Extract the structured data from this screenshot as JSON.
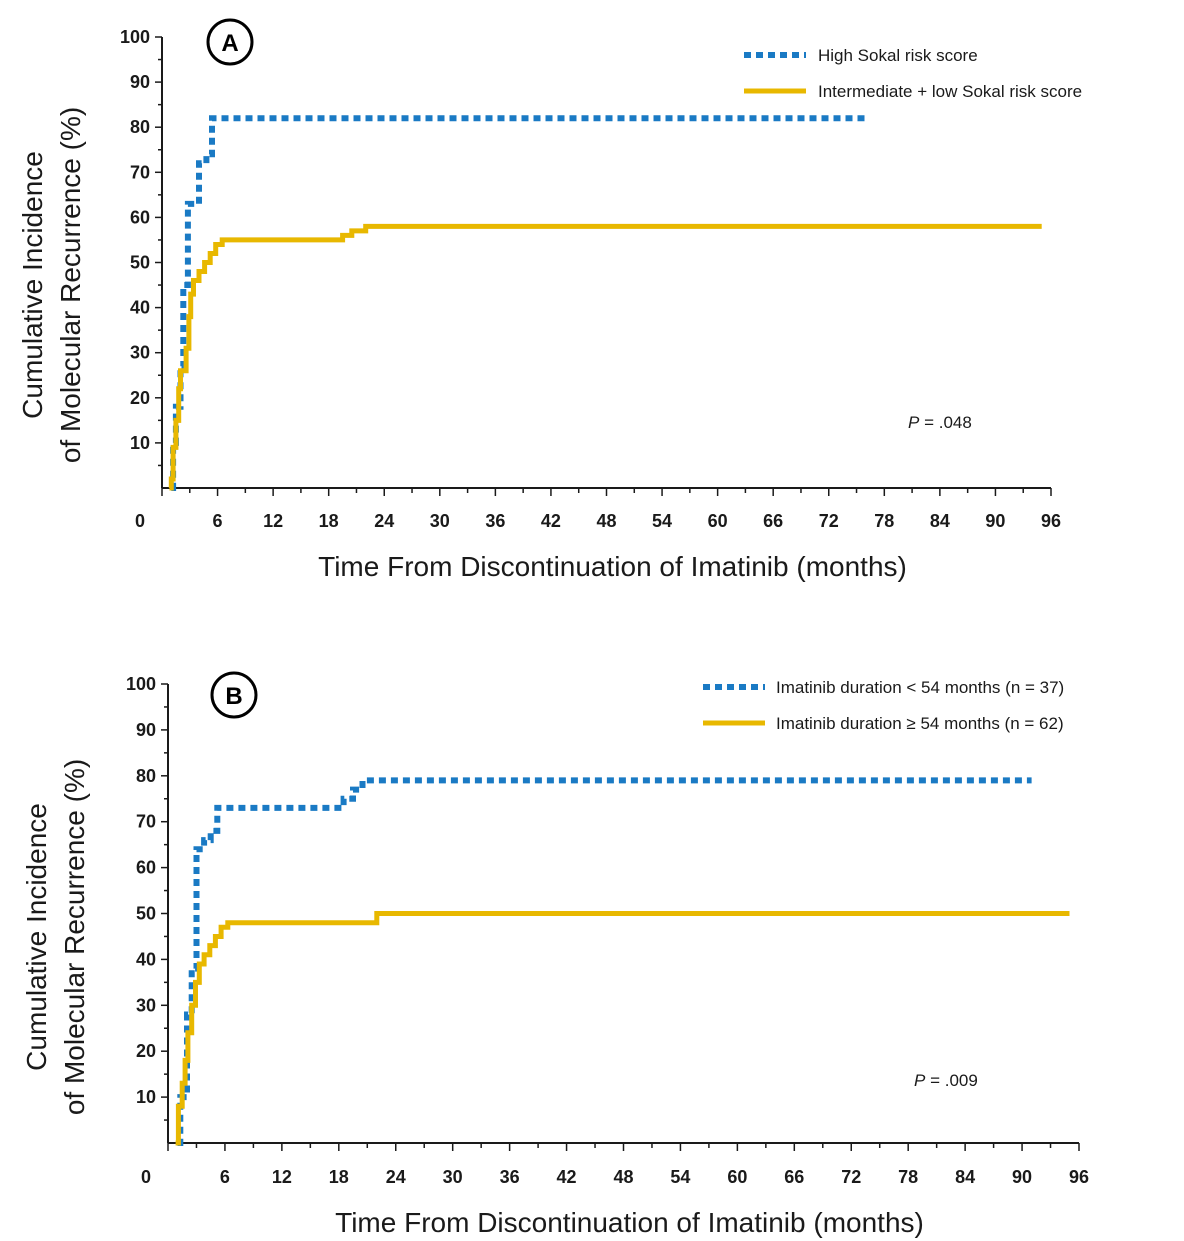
{
  "colors": {
    "series_dashed": "#1a7ac4",
    "series_solid": "#e8b800",
    "axis": "#1a1a1a"
  },
  "chart_data": [
    {
      "panel_label": "A",
      "type": "line",
      "xlabel": "Time From Discontinuation of Imatinib (months)",
      "ylabel_line1": "Cumulative Incidence",
      "ylabel_line2": "of Molecular Recurrence (%)",
      "xlim": [
        0,
        96
      ],
      "ylim": [
        0,
        100
      ],
      "xticks": [
        0,
        6,
        12,
        18,
        24,
        30,
        36,
        42,
        48,
        54,
        60,
        66,
        72,
        78,
        84,
        90,
        96
      ],
      "yticks": [
        10,
        20,
        30,
        40,
        50,
        60,
        70,
        80,
        90,
        100
      ],
      "annotation": {
        "p_label": "P",
        "p_value": " = .048"
      },
      "grid": false,
      "legend_position": "top-right",
      "series": [
        {
          "name": "High Sokal risk score",
          "style": "dashed",
          "points": [
            [
              1,
              0
            ],
            [
              1.2,
              10
            ],
            [
              1.5,
              18
            ],
            [
              2,
              27
            ],
            [
              2.3,
              45
            ],
            [
              2.8,
              63
            ],
            [
              3.6,
              63
            ],
            [
              4,
              72
            ],
            [
              4.8,
              74
            ],
            [
              5.4,
              82
            ],
            [
              76,
              82
            ]
          ]
        },
        {
          "name": "Intermediate + low Sokal risk score",
          "style": "solid",
          "points": [
            [
              0.8,
              0
            ],
            [
              1,
              2
            ],
            [
              1.2,
              9
            ],
            [
              1.5,
              15
            ],
            [
              1.8,
              22
            ],
            [
              2,
              26
            ],
            [
              2.6,
              31
            ],
            [
              2.9,
              38
            ],
            [
              3.1,
              43
            ],
            [
              3.4,
              46
            ],
            [
              4,
              48
            ],
            [
              4.6,
              50
            ],
            [
              5.2,
              52
            ],
            [
              5.8,
              54
            ],
            [
              6.5,
              55
            ],
            [
              18.5,
              55
            ],
            [
              19.5,
              56
            ],
            [
              20.5,
              57
            ],
            [
              22,
              58
            ],
            [
              95,
              58
            ]
          ]
        }
      ]
    },
    {
      "panel_label": "B",
      "type": "line",
      "xlabel": "Time From Discontinuation of Imatinib (months)",
      "ylabel_line1": "Cumulative Incidence",
      "ylabel_line2": "of Molecular Recurrence (%)",
      "xlim": [
        0,
        96
      ],
      "ylim": [
        0,
        100
      ],
      "xticks": [
        0,
        6,
        12,
        18,
        24,
        30,
        36,
        42,
        48,
        54,
        60,
        66,
        72,
        78,
        84,
        90,
        96
      ],
      "yticks": [
        10,
        20,
        30,
        40,
        50,
        60,
        70,
        80,
        90,
        100
      ],
      "annotation": {
        "p_label": "P",
        "p_value": " = .009"
      },
      "grid": false,
      "legend_position": "top-right",
      "series": [
        {
          "name": "Imatinib duration < 54 months (n = 37)",
          "style": "dashed",
          "points": [
            [
              1,
              0
            ],
            [
              1.3,
              10
            ],
            [
              2,
              28
            ],
            [
              2.5,
              38
            ],
            [
              3,
              64
            ],
            [
              3.8,
              66
            ],
            [
              4.5,
              68
            ],
            [
              5.2,
              73
            ],
            [
              17.5,
              73
            ],
            [
              18.5,
              75
            ],
            [
              19.5,
              77
            ],
            [
              20.5,
              79
            ],
            [
              91,
              79
            ]
          ]
        },
        {
          "name": "Imatinib duration ≥ 54 months (n = 62)",
          "style": "solid",
          "points": [
            [
              0.8,
              0
            ],
            [
              1.1,
              8
            ],
            [
              1.5,
              13
            ],
            [
              1.8,
              18
            ],
            [
              2.1,
              24
            ],
            [
              2.5,
              30
            ],
            [
              2.9,
              35
            ],
            [
              3.3,
              39
            ],
            [
              3.8,
              41
            ],
            [
              4.4,
              43
            ],
            [
              5,
              45
            ],
            [
              5.6,
              47
            ],
            [
              6.3,
              48
            ],
            [
              21.5,
              48
            ],
            [
              22,
              50
            ],
            [
              95,
              50
            ]
          ]
        }
      ]
    }
  ]
}
